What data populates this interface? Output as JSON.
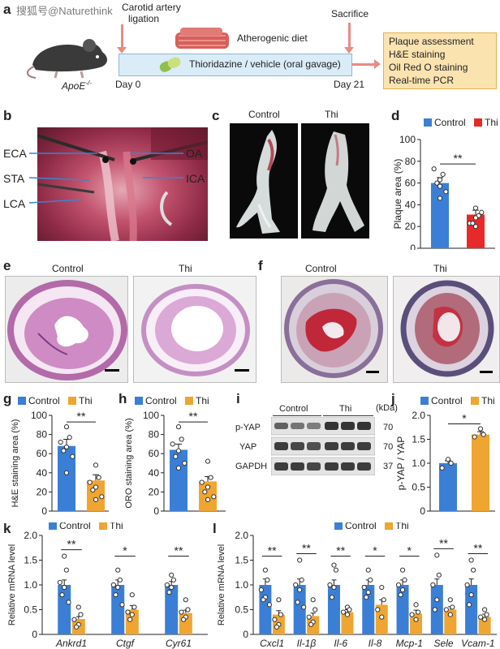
{
  "watermark": "搜狐号@Naturethink",
  "panel_labels": {
    "a": "a",
    "b": "b",
    "c": "c",
    "d": "d",
    "e": "e",
    "f": "f",
    "g": "g",
    "h": "h",
    "i": "i",
    "j": "j",
    "k": "k",
    "l": "l"
  },
  "schematic": {
    "ligation": [
      "Carotid artery",
      "ligation"
    ],
    "sacrifice": "Sacrifice",
    "diet": "Atherogenic diet",
    "treatment": "Thioridazine / vehicle (oral gavage)",
    "mouse": "ApoE",
    "mouse_sup": "-/-",
    "day0": "Day 0",
    "day21": "Day 21",
    "assessments": [
      "Plaque assessment",
      "H&E staining",
      "Oil Red O staining",
      "Real-time PCR"
    ],
    "colors": {
      "timeline": "#d9ecf7",
      "box": "#fbe3b0",
      "arrow": "#e98a84"
    }
  },
  "surgery_labels": {
    "left": [
      "ECA",
      "STA",
      "LCA"
    ],
    "right": [
      "OA",
      "ICA"
    ]
  },
  "group_labels": {
    "control": "Control",
    "thi": "Thi"
  },
  "legend": {
    "control": "Control",
    "thi": "Thi"
  },
  "colors": {
    "control": "#3a7fd5",
    "thi_d": "#e8292a",
    "thi": "#efa531"
  },
  "units": "(kDa)",
  "blot": {
    "header": {
      "control": "Control",
      "thi": "Thi"
    },
    "rows": [
      {
        "label": "p-YAP",
        "kda": "70"
      },
      {
        "label": "YAP",
        "kda": "70"
      },
      {
        "label": "GAPDH",
        "kda": "37"
      }
    ]
  },
  "chart_data": [
    {
      "id": "d",
      "type": "bar",
      "ylabel": "Plaque area (%)",
      "ylim": [
        0,
        100
      ],
      "ticks": [
        0,
        20,
        40,
        60,
        80,
        100
      ],
      "categories": [
        "Control",
        "Thi"
      ],
      "values": [
        60,
        31
      ],
      "errors": [
        5,
        4
      ],
      "significance": "**",
      "points": [
        [
          63,
          68,
          73,
          57,
          60,
          52,
          46
        ],
        [
          37,
          30,
          23,
          20,
          23,
          33,
          28
        ]
      ]
    },
    {
      "id": "g",
      "type": "bar",
      "ylabel": "H&E staining area (%)",
      "ylim": [
        0,
        100
      ],
      "ticks": [
        0,
        20,
        40,
        60,
        80,
        100
      ],
      "categories": [
        "Control",
        "Thi"
      ],
      "values": [
        68,
        32
      ],
      "errors": [
        7,
        6
      ],
      "significance": "**",
      "points": [
        [
          88,
          77,
          72,
          67,
          63,
          57,
          40
        ],
        [
          48,
          35,
          30,
          25,
          22,
          15,
          12
        ]
      ]
    },
    {
      "id": "h",
      "type": "bar",
      "ylabel": "ORO staining area (%)",
      "ylim": [
        0,
        100
      ],
      "ticks": [
        0,
        20,
        40,
        60,
        80,
        100
      ],
      "categories": [
        "Control",
        "Thi"
      ],
      "values": [
        64,
        31
      ],
      "errors": [
        6,
        5
      ],
      "significance": "**",
      "points": [
        [
          88,
          75,
          70,
          63,
          57,
          50,
          45
        ],
        [
          52,
          35,
          30,
          25,
          20,
          15,
          12
        ]
      ]
    },
    {
      "id": "j",
      "type": "bar",
      "ylabel": "p-YAP / YAP",
      "ylim": [
        0,
        2.0
      ],
      "ticks": [
        0,
        0.5,
        1.0,
        1.5,
        2.0
      ],
      "tick_labels": [
        "0",
        "0.5",
        "1.0",
        "1.5",
        "2.0"
      ],
      "categories": [
        "Control",
        "Thi"
      ],
      "values": [
        1.0,
        1.6
      ],
      "errors": [
        0.05,
        0.06
      ],
      "significance": "*",
      "points": [
        [
          1.08,
          1.0,
          0.9
        ],
        [
          1.72,
          1.6,
          1.55
        ]
      ]
    },
    {
      "id": "k",
      "type": "bar",
      "ylabel": "Relative mRNA level",
      "ylim": [
        0,
        2.0
      ],
      "ticks": [
        0,
        0.5,
        1.0,
        1.5,
        2.0
      ],
      "tick_labels": [
        "0",
        "0.5",
        "1.0",
        "1.5",
        "2.0"
      ],
      "genes": [
        "Ankrd1",
        "Ctgf",
        "Cyr61"
      ],
      "series": [
        {
          "name": "Control",
          "values": [
            1.0,
            1.0,
            1.0
          ],
          "errors": [
            0.1,
            0.1,
            0.07
          ]
        },
        {
          "name": "Thi",
          "values": [
            0.31,
            0.5,
            0.43
          ],
          "errors": [
            0.05,
            0.08,
            0.06
          ]
        }
      ],
      "significance": [
        "**",
        "*",
        "**"
      ],
      "points": {
        "control": [
          [
            1.58,
            1.3,
            1.05,
            0.95,
            0.8,
            0.65
          ],
          [
            1.3,
            1.1,
            1.0,
            0.95,
            0.8,
            0.6
          ],
          [
            1.2,
            1.1,
            1.0,
            0.95,
            0.85
          ]
        ],
        "thi": [
          [
            0.55,
            0.4,
            0.3,
            0.2,
            0.15
          ],
          [
            0.8,
            0.55,
            0.45,
            0.4,
            0.3
          ],
          [
            0.7,
            0.5,
            0.45,
            0.35,
            0.3
          ]
        ]
      }
    },
    {
      "id": "l",
      "type": "bar",
      "ylabel": "Relative mRNA level",
      "ylim": [
        0,
        2.0
      ],
      "ticks": [
        0,
        0.5,
        1.0,
        1.5,
        2.0
      ],
      "tick_labels": [
        "0",
        "0.5",
        "1.0",
        "1.5",
        "2.0"
      ],
      "genes": [
        "Cxcl1",
        "Il-1β",
        "Il-6",
        "Il-8",
        "Mcp-1",
        "Sele",
        "Vcam-1"
      ],
      "series": [
        {
          "name": "Control",
          "values": [
            1.0,
            1.0,
            1.0,
            1.0,
            1.0,
            1.0,
            1.0
          ],
          "errors": [
            0.12,
            0.12,
            0.1,
            0.1,
            0.1,
            0.12,
            0.12
          ]
        },
        {
          "name": "Thi",
          "values": [
            0.4,
            0.37,
            0.45,
            0.6,
            0.42,
            0.5,
            0.36
          ],
          "errors": [
            0.08,
            0.06,
            0.05,
            0.1,
            0.07,
            0.06,
            0.05
          ]
        }
      ],
      "significance": [
        "**",
        "**",
        "**",
        "*",
        "*",
        "**",
        "**"
      ],
      "points": {
        "control": [
          [
            1.3,
            1.1,
            0.9,
            0.75,
            0.7,
            0.6
          ],
          [
            1.5,
            1.1,
            1.0,
            0.9,
            0.65,
            0.55
          ],
          [
            1.4,
            1.3,
            1.0,
            0.95,
            0.75
          ],
          [
            1.3,
            1.1,
            0.95,
            0.85,
            0.75
          ],
          [
            1.3,
            1.1,
            1.0,
            0.9,
            0.8
          ],
          [
            1.6,
            1.2,
            1.0,
            0.7,
            0.5
          ],
          [
            1.5,
            1.3,
            1.0,
            0.8,
            0.6
          ]
        ],
        "thi": [
          [
            0.7,
            0.4,
            0.3,
            0.2,
            0.15
          ],
          [
            0.7,
            0.5,
            0.35,
            0.25,
            0.2
          ],
          [
            0.55,
            0.5,
            0.45,
            0.4
          ],
          [
            0.95,
            0.7,
            0.5,
            0.35
          ],
          [
            0.6,
            0.45,
            0.4,
            0.3
          ],
          [
            0.7,
            0.55,
            0.5,
            0.4
          ],
          [
            0.5,
            0.4,
            0.35,
            0.3
          ]
        ]
      }
    }
  ]
}
